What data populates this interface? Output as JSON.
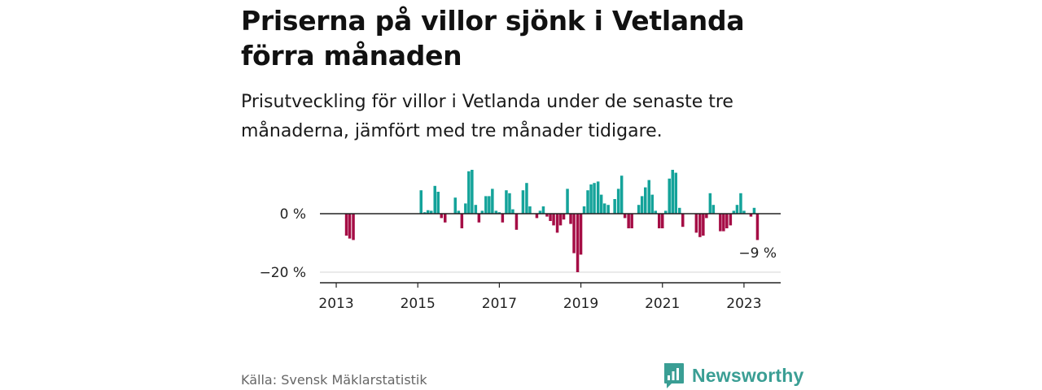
{
  "title": "Priserna på villor sjönk i Vetlanda förra månaden",
  "subtitle": "Prisutveckling för villor i Vetlanda under de senaste tre månaderna, jämfört med tre månader tidigare.",
  "source": "Källa: Svensk Mäklarstatistik",
  "brand": {
    "name": "Newsworthy",
    "icon": "newsworthy-logo-icon"
  },
  "colors": {
    "positive": "#14a39a",
    "negative": "#a50d45",
    "axis": "#222222",
    "grid": "#d5d5d5"
  },
  "chart_data": {
    "type": "bar",
    "x_axis": {
      "range": [
        2012.6,
        2023.9
      ],
      "ticks": [
        "2013",
        "2015",
        "2017",
        "2019",
        "2021",
        "2023"
      ]
    },
    "y_axis": {
      "range": [
        -22,
        17
      ],
      "ticks": [
        0,
        -20
      ],
      "tick_labels": [
        "0 %",
        "−20 %"
      ],
      "grid": true
    },
    "last_value_label": "−9 %",
    "series": [
      {
        "values": [
          {
            "x": 2013.25,
            "y": -7.5
          },
          {
            "x": 2013.33,
            "y": -8.5
          },
          {
            "x": 2013.42,
            "y": -9.0
          },
          {
            "x": 2015.08,
            "y": 8.0
          },
          {
            "x": 2015.17,
            "y": 0.5
          },
          {
            "x": 2015.25,
            "y": 1.2
          },
          {
            "x": 2015.33,
            "y": 1.0
          },
          {
            "x": 2015.42,
            "y": 9.5
          },
          {
            "x": 2015.5,
            "y": 7.5
          },
          {
            "x": 2015.58,
            "y": -1.5
          },
          {
            "x": 2015.67,
            "y": -3.0
          },
          {
            "x": 2015.92,
            "y": 5.5
          },
          {
            "x": 2016.0,
            "y": 1.0
          },
          {
            "x": 2016.08,
            "y": -5.0
          },
          {
            "x": 2016.17,
            "y": 3.5
          },
          {
            "x": 2016.25,
            "y": 14.5
          },
          {
            "x": 2016.33,
            "y": 15.0
          },
          {
            "x": 2016.42,
            "y": 3.0
          },
          {
            "x": 2016.5,
            "y": -3.0
          },
          {
            "x": 2016.58,
            "y": 1.0
          },
          {
            "x": 2016.67,
            "y": 6.0
          },
          {
            "x": 2016.75,
            "y": 6.0
          },
          {
            "x": 2016.83,
            "y": 8.5
          },
          {
            "x": 2016.92,
            "y": 1.0
          },
          {
            "x": 2017.0,
            "y": 0.5
          },
          {
            "x": 2017.08,
            "y": -3.0
          },
          {
            "x": 2017.17,
            "y": 8.0
          },
          {
            "x": 2017.25,
            "y": 7.0
          },
          {
            "x": 2017.33,
            "y": 1.5
          },
          {
            "x": 2017.42,
            "y": -5.5
          },
          {
            "x": 2017.58,
            "y": 8.0
          },
          {
            "x": 2017.67,
            "y": 10.5
          },
          {
            "x": 2017.75,
            "y": 2.5
          },
          {
            "x": 2017.92,
            "y": -1.5
          },
          {
            "x": 2018.0,
            "y": 1.0
          },
          {
            "x": 2018.08,
            "y": 2.5
          },
          {
            "x": 2018.17,
            "y": -1.0
          },
          {
            "x": 2018.25,
            "y": -2.5
          },
          {
            "x": 2018.33,
            "y": -4.0
          },
          {
            "x": 2018.42,
            "y": -6.5
          },
          {
            "x": 2018.5,
            "y": -4.0
          },
          {
            "x": 2018.58,
            "y": -2.0
          },
          {
            "x": 2018.67,
            "y": 8.5
          },
          {
            "x": 2018.75,
            "y": -3.5
          },
          {
            "x": 2018.83,
            "y": -13.5
          },
          {
            "x": 2018.92,
            "y": -20.0
          },
          {
            "x": 2019.0,
            "y": -14.0
          },
          {
            "x": 2019.08,
            "y": 2.5
          },
          {
            "x": 2019.17,
            "y": 8.0
          },
          {
            "x": 2019.25,
            "y": 10.0
          },
          {
            "x": 2019.33,
            "y": 10.5
          },
          {
            "x": 2019.42,
            "y": 11.0
          },
          {
            "x": 2019.5,
            "y": 6.5
          },
          {
            "x": 2019.58,
            "y": 3.5
          },
          {
            "x": 2019.67,
            "y": 3.0
          },
          {
            "x": 2019.83,
            "y": 5.0
          },
          {
            "x": 2019.92,
            "y": 8.5
          },
          {
            "x": 2020.0,
            "y": 13.0
          },
          {
            "x": 2020.08,
            "y": -1.5
          },
          {
            "x": 2020.17,
            "y": -5.0
          },
          {
            "x": 2020.25,
            "y": -5.0
          },
          {
            "x": 2020.42,
            "y": 3.0
          },
          {
            "x": 2020.5,
            "y": 6.0
          },
          {
            "x": 2020.58,
            "y": 9.0
          },
          {
            "x": 2020.67,
            "y": 11.5
          },
          {
            "x": 2020.75,
            "y": 6.5
          },
          {
            "x": 2020.83,
            "y": 1.0
          },
          {
            "x": 2020.92,
            "y": -5.0
          },
          {
            "x": 2021.0,
            "y": -5.0
          },
          {
            "x": 2021.08,
            "y": 1.0
          },
          {
            "x": 2021.17,
            "y": 12.0
          },
          {
            "x": 2021.25,
            "y": 15.0
          },
          {
            "x": 2021.33,
            "y": 14.0
          },
          {
            "x": 2021.42,
            "y": 2.0
          },
          {
            "x": 2021.5,
            "y": -4.5
          },
          {
            "x": 2021.83,
            "y": -6.5
          },
          {
            "x": 2021.92,
            "y": -8.0
          },
          {
            "x": 2022.0,
            "y": -7.5
          },
          {
            "x": 2022.08,
            "y": -1.5
          },
          {
            "x": 2022.17,
            "y": 7.0
          },
          {
            "x": 2022.25,
            "y": 3.0
          },
          {
            "x": 2022.42,
            "y": -6.0
          },
          {
            "x": 2022.5,
            "y": -6.0
          },
          {
            "x": 2022.58,
            "y": -5.0
          },
          {
            "x": 2022.67,
            "y": -4.0
          },
          {
            "x": 2022.75,
            "y": 1.0
          },
          {
            "x": 2022.83,
            "y": 3.0
          },
          {
            "x": 2022.92,
            "y": 7.0
          },
          {
            "x": 2023.0,
            "y": 1.0
          },
          {
            "x": 2023.17,
            "y": -1.0
          },
          {
            "x": 2023.25,
            "y": 2.0
          },
          {
            "x": 2023.33,
            "y": -9.0
          }
        ]
      }
    ]
  }
}
